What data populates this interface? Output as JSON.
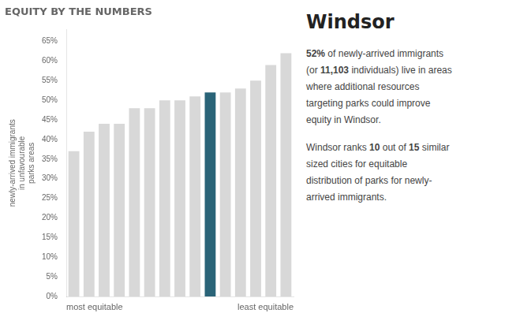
{
  "chart_data": {
    "type": "bar",
    "title": "EQUITY BY THE NUMBERS",
    "subtitle": "Windsor",
    "ylabel": "newly-arrived immigrants\nin unfavourable\nparks areas",
    "xlabel": [
      "most equitable",
      "least equitable"
    ],
    "categories": [
      null,
      null,
      null,
      null,
      null,
      null,
      null,
      null,
      null,
      null,
      null,
      null,
      null,
      null,
      null
    ],
    "values": [
      37,
      42,
      44,
      44,
      48,
      48,
      50,
      50,
      51,
      52,
      52,
      53,
      55,
      59,
      62
    ],
    "colors": [
      "#d8d8d8",
      "#d8d8d8",
      "#d8d8d8",
      "#d8d8d8",
      "#d8d8d8",
      "#d8d8d8",
      "#d8d8d8",
      "#d8d8d8",
      "#d8d8d8",
      "#2a6478",
      "#d8d8d8",
      "#d8d8d8",
      "#d8d8d8",
      "#d8d8d8",
      "#d8d8d8"
    ],
    "ylim": [
      0,
      68
    ],
    "yticks": [
      {
        "value": 0,
        "label": "0%"
      },
      {
        "value": 5,
        "label": "5%"
      },
      {
        "value": 10,
        "label": "10%"
      },
      {
        "value": 15,
        "label": "15%"
      },
      {
        "value": 20,
        "label": "20%"
      },
      {
        "value": 25,
        "label": "25%"
      },
      {
        "value": 30,
        "label": "30%"
      },
      {
        "value": 35,
        "label": "35%"
      },
      {
        "value": 40,
        "label": "40%"
      },
      {
        "value": 45,
        "label": "45%"
      },
      {
        "value": 50,
        "label": "50%"
      },
      {
        "value": 55,
        "label": "55%"
      },
      {
        "value": 60,
        "label": "60%"
      },
      {
        "value": 65,
        "label": "65%"
      }
    ],
    "grid": false,
    "tick_labels": "y",
    "annotations": [
      [
        "52% of newly-arrived immigrants",
        "(or 11,103 individuals) live in areas",
        "where additional resources",
        "targeting parks could improve",
        "equity in Windsor."
      ],
      [
        "Windsor ranks 10 out of 15 similar",
        "sized cities for equitable",
        "distribution of parks for newly-",
        "arrived immigrants."
      ]
    ]
  }
}
